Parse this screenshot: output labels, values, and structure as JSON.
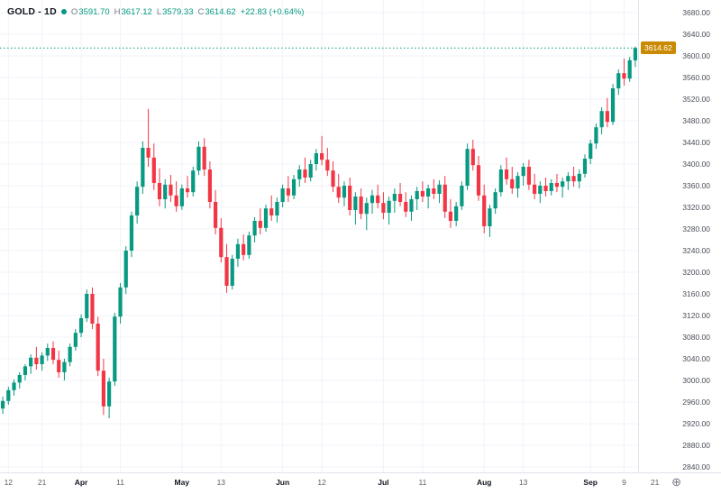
{
  "legend": {
    "symbol": "GOLD - 1D",
    "ohlc": {
      "o_label": "O",
      "o": "3591.70",
      "h_label": "H",
      "h": "3617.12",
      "l_label": "L",
      "l": "3579.33",
      "c_label": "C",
      "c": "3614.62",
      "change": "+22.83 (+0.64%)"
    }
  },
  "icons": {
    "plus_circle": "⊕"
  },
  "colors": {
    "up": "#089981",
    "down": "#f23645",
    "grid": "#f0f3fa",
    "price_line": "#089981",
    "badge_bg": "#ca8a04",
    "badge_text": "#ffffff"
  },
  "chart_data": {
    "type": "candlestick",
    "title": "GOLD - 1D",
    "last_price": 3614.62,
    "last_price_label": "3614.62",
    "price_axis": {
      "min": 2840,
      "max": 3680,
      "step": 40
    },
    "time_labels": [
      {
        "label": "12",
        "index": 1
      },
      {
        "label": "21",
        "index": 7
      },
      {
        "label": "Apr",
        "index": 14,
        "strong": true
      },
      {
        "label": "11",
        "index": 21
      },
      {
        "label": "May",
        "index": 32,
        "strong": true
      },
      {
        "label": "13",
        "index": 39
      },
      {
        "label": "Jun",
        "index": 50,
        "strong": true
      },
      {
        "label": "12",
        "index": 57
      },
      {
        "label": "Jul",
        "index": 68,
        "strong": true
      },
      {
        "label": "11",
        "index": 75
      },
      {
        "label": "Aug",
        "index": 86,
        "strong": true
      },
      {
        "label": "13",
        "index": 93
      },
      {
        "label": "Sep",
        "index": 105,
        "strong": true
      },
      {
        "label": "9",
        "index": 111
      },
      {
        "label": "21",
        "index": 116.5
      }
    ],
    "candles": [
      [
        2948,
        2970,
        2938,
        2962
      ],
      [
        2962,
        2988,
        2955,
        2982
      ],
      [
        2982,
        3002,
        2972,
        2996
      ],
      [
        2996,
        3015,
        2985,
        3010
      ],
      [
        3010,
        3030,
        3000,
        3026
      ],
      [
        3026,
        3048,
        3012,
        3042
      ],
      [
        3042,
        3062,
        3020,
        3030
      ],
      [
        3030,
        3052,
        3018,
        3046
      ],
      [
        3046,
        3068,
        3036,
        3060
      ],
      [
        3060,
        3072,
        3030,
        3038
      ],
      [
        3038,
        3055,
        3005,
        3015
      ],
      [
        3015,
        3040,
        3000,
        3034
      ],
      [
        3034,
        3068,
        3026,
        3062
      ],
      [
        3062,
        3095,
        3055,
        3088
      ],
      [
        3088,
        3122,
        3080,
        3115
      ],
      [
        3115,
        3168,
        3108,
        3160
      ],
      [
        3160,
        3172,
        3095,
        3105
      ],
      [
        3105,
        3118,
        3008,
        3018
      ],
      [
        3018,
        3040,
        2936,
        2952
      ],
      [
        2952,
        3005,
        2930,
        2998
      ],
      [
        2998,
        3125,
        2990,
        3118
      ],
      [
        3118,
        3180,
        3105,
        3172
      ],
      [
        3172,
        3248,
        3160,
        3240
      ],
      [
        3240,
        3312,
        3228,
        3305
      ],
      [
        3305,
        3368,
        3290,
        3358
      ],
      [
        3358,
        3442,
        3345,
        3430
      ],
      [
        3430,
        3502,
        3395,
        3412
      ],
      [
        3412,
        3438,
        3352,
        3365
      ],
      [
        3365,
        3392,
        3322,
        3335
      ],
      [
        3335,
        3372,
        3318,
        3362
      ],
      [
        3362,
        3380,
        3330,
        3342
      ],
      [
        3342,
        3368,
        3312,
        3322
      ],
      [
        3322,
        3362,
        3315,
        3355
      ],
      [
        3355,
        3378,
        3338,
        3348
      ],
      [
        3348,
        3395,
        3340,
        3388
      ],
      [
        3388,
        3442,
        3380,
        3432
      ],
      [
        3432,
        3448,
        3378,
        3390
      ],
      [
        3390,
        3405,
        3318,
        3330
      ],
      [
        3330,
        3352,
        3270,
        3282
      ],
      [
        3282,
        3300,
        3218,
        3228
      ],
      [
        3228,
        3252,
        3162,
        3175
      ],
      [
        3175,
        3232,
        3168,
        3225
      ],
      [
        3225,
        3262,
        3210,
        3252
      ],
      [
        3252,
        3270,
        3222,
        3232
      ],
      [
        3232,
        3275,
        3225,
        3268
      ],
      [
        3268,
        3302,
        3255,
        3295
      ],
      [
        3295,
        3318,
        3270,
        3282
      ],
      [
        3282,
        3325,
        3275,
        3318
      ],
      [
        3318,
        3342,
        3295,
        3305
      ],
      [
        3305,
        3338,
        3292,
        3330
      ],
      [
        3330,
        3362,
        3320,
        3355
      ],
      [
        3355,
        3378,
        3330,
        3342
      ],
      [
        3342,
        3380,
        3335,
        3372
      ],
      [
        3372,
        3398,
        3358,
        3390
      ],
      [
        3390,
        3412,
        3365,
        3375
      ],
      [
        3375,
        3408,
        3368,
        3400
      ],
      [
        3400,
        3428,
        3388,
        3420
      ],
      [
        3420,
        3452,
        3398,
        3408
      ],
      [
        3408,
        3430,
        3378,
        3388
      ],
      [
        3388,
        3405,
        3348,
        3358
      ],
      [
        3358,
        3382,
        3328,
        3338
      ],
      [
        3338,
        3368,
        3322,
        3360
      ],
      [
        3360,
        3375,
        3305,
        3315
      ],
      [
        3315,
        3348,
        3288,
        3340
      ],
      [
        3340,
        3355,
        3298,
        3308
      ],
      [
        3308,
        3338,
        3278,
        3328
      ],
      [
        3328,
        3352,
        3308,
        3342
      ],
      [
        3342,
        3362,
        3318,
        3328
      ],
      [
        3328,
        3348,
        3298,
        3310
      ],
      [
        3310,
        3340,
        3288,
        3332
      ],
      [
        3332,
        3355,
        3310,
        3345
      ],
      [
        3345,
        3365,
        3322,
        3330
      ],
      [
        3330,
        3348,
        3302,
        3312
      ],
      [
        3312,
        3342,
        3295,
        3335
      ],
      [
        3335,
        3358,
        3315,
        3350
      ],
      [
        3350,
        3368,
        3330,
        3340
      ],
      [
        3340,
        3362,
        3318,
        3355
      ],
      [
        3355,
        3372,
        3335,
        3345
      ],
      [
        3345,
        3370,
        3328,
        3362
      ],
      [
        3362,
        3378,
        3300,
        3312
      ],
      [
        3312,
        3335,
        3282,
        3295
      ],
      [
        3295,
        3330,
        3285,
        3322
      ],
      [
        3322,
        3368,
        3315,
        3360
      ],
      [
        3360,
        3438,
        3352,
        3428
      ],
      [
        3428,
        3445,
        3388,
        3398
      ],
      [
        3398,
        3415,
        3332,
        3342
      ],
      [
        3342,
        3362,
        3272,
        3285
      ],
      [
        3285,
        3325,
        3265,
        3318
      ],
      [
        3318,
        3355,
        3308,
        3348
      ],
      [
        3348,
        3398,
        3340,
        3390
      ],
      [
        3390,
        3412,
        3362,
        3372
      ],
      [
        3372,
        3395,
        3345,
        3355
      ],
      [
        3355,
        3385,
        3338,
        3378
      ],
      [
        3378,
        3402,
        3360,
        3395
      ],
      [
        3395,
        3408,
        3352,
        3362
      ],
      [
        3362,
        3382,
        3335,
        3345
      ],
      [
        3345,
        3368,
        3328,
        3360
      ],
      [
        3360,
        3375,
        3340,
        3350
      ],
      [
        3350,
        3372,
        3342,
        3365
      ],
      [
        3365,
        3382,
        3348,
        3358
      ],
      [
        3358,
        3375,
        3338,
        3368
      ],
      [
        3368,
        3385,
        3352,
        3378
      ],
      [
        3378,
        3395,
        3358,
        3368
      ],
      [
        3368,
        3390,
        3355,
        3382
      ],
      [
        3382,
        3418,
        3375,
        3410
      ],
      [
        3410,
        3445,
        3400,
        3438
      ],
      [
        3438,
        3475,
        3428,
        3468
      ],
      [
        3468,
        3505,
        3455,
        3498
      ],
      [
        3498,
        3522,
        3468,
        3478
      ],
      [
        3478,
        3548,
        3472,
        3540
      ],
      [
        3540,
        3575,
        3528,
        3568
      ],
      [
        3568,
        3595,
        3545,
        3558
      ],
      [
        3558,
        3598,
        3552,
        3592
      ],
      [
        3591.7,
        3617.12,
        3579.33,
        3614.62
      ]
    ]
  }
}
